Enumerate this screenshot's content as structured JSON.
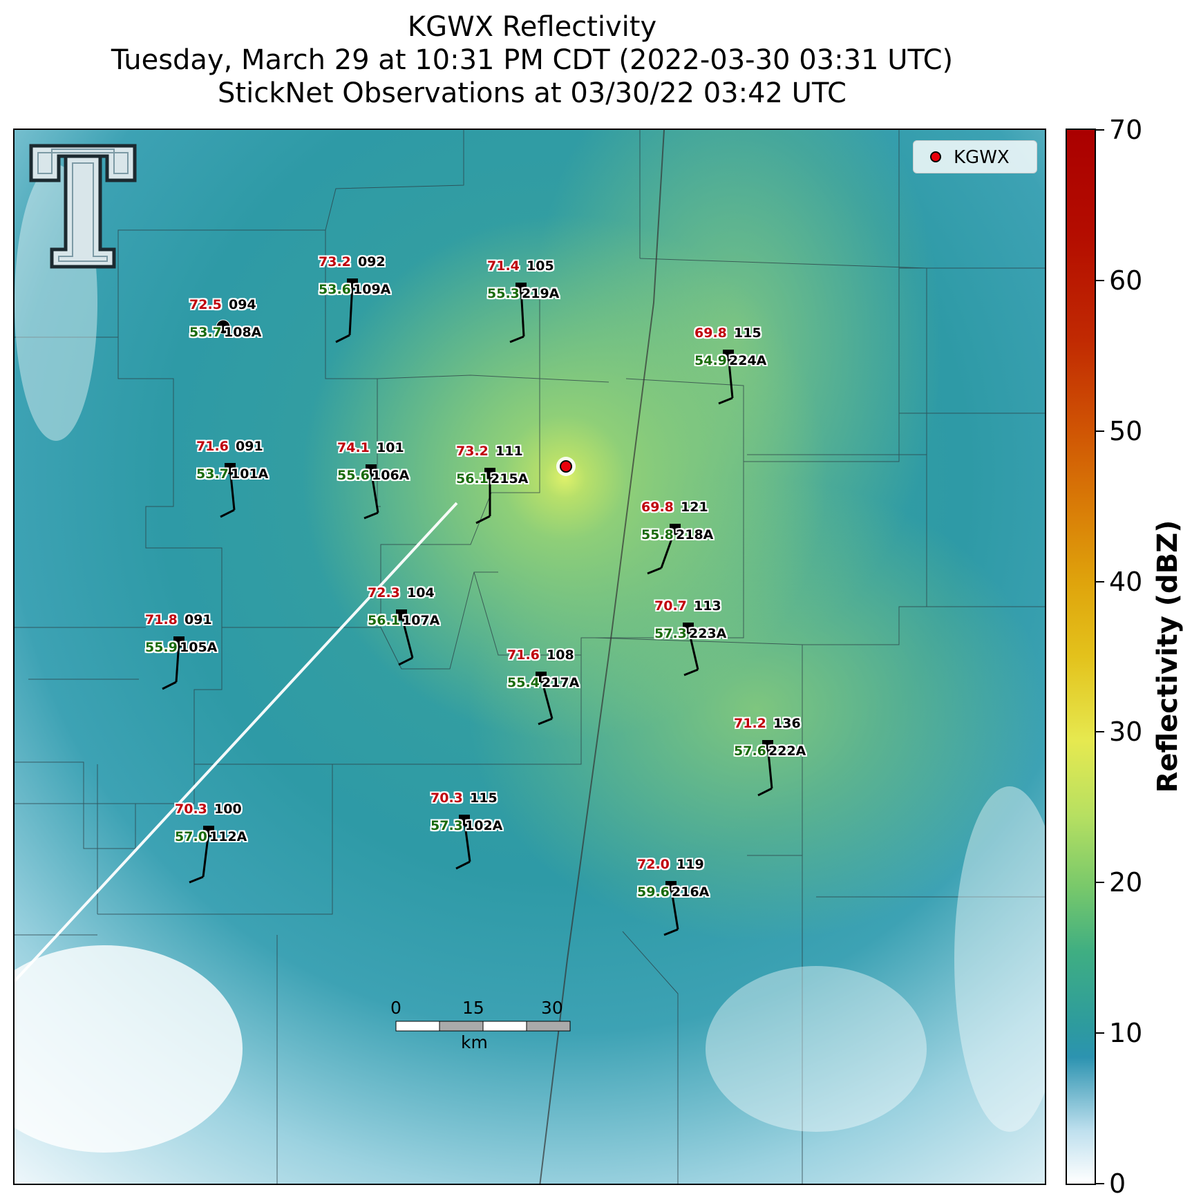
{
  "title": {
    "line1": "KGWX Reflectivity",
    "line2": "Tuesday, March 29 at 10:31 PM CDT (2022-03-30 03:31 UTC)",
    "line3": "StickNet Observations at 03/30/22 03:42 UTC"
  },
  "legend": {
    "label": "KGWX",
    "marker_color": "#e8000b"
  },
  "colorbar": {
    "label": "Reflectivity (dBZ)",
    "ticks": [
      "0",
      "10",
      "20",
      "30",
      "40",
      "50",
      "60",
      "70"
    ],
    "range": [
      0,
      70
    ]
  },
  "scalebar": {
    "labels": [
      "0",
      "15",
      "30"
    ],
    "unit": "km"
  },
  "stations": [
    {
      "id": "109A",
      "temp": "73.2",
      "dew": "53.6",
      "heading": "092"
    },
    {
      "id": "219A",
      "temp": "71.4",
      "dew": "55.3",
      "heading": "105"
    },
    {
      "id": "108A",
      "temp": "72.5",
      "dew": "53.7",
      "heading": "094"
    },
    {
      "id": "224A",
      "temp": "69.8",
      "dew": "54.9",
      "heading": "115"
    },
    {
      "id": "101A",
      "temp": "71.6",
      "dew": "53.7",
      "heading": "091"
    },
    {
      "id": "106A",
      "temp": "74.1",
      "dew": "55.6",
      "heading": "101"
    },
    {
      "id": "215A",
      "temp": "73.2",
      "dew": "56.1",
      "heading": "111"
    },
    {
      "id": "218A",
      "temp": "69.8",
      "dew": "55.8",
      "heading": "121"
    },
    {
      "id": "107A",
      "temp": "72.3",
      "dew": "56.1",
      "heading": "104"
    },
    {
      "id": "223A",
      "temp": "70.7",
      "dew": "57.3",
      "heading": "113"
    },
    {
      "id": "105A",
      "temp": "71.8",
      "dew": "55.9",
      "heading": "091"
    },
    {
      "id": "217A",
      "temp": "71.6",
      "dew": "55.4",
      "heading": "108"
    },
    {
      "id": "222A",
      "temp": "71.2",
      "dew": "57.6",
      "heading": "136"
    },
    {
      "id": "112A",
      "temp": "70.3",
      "dew": "57.0",
      "heading": "100"
    },
    {
      "id": "102A",
      "temp": "70.3",
      "dew": "57.3",
      "heading": "115"
    },
    {
      "id": "216A",
      "temp": "72.0",
      "dew": "59.6",
      "heading": "119"
    }
  ]
}
